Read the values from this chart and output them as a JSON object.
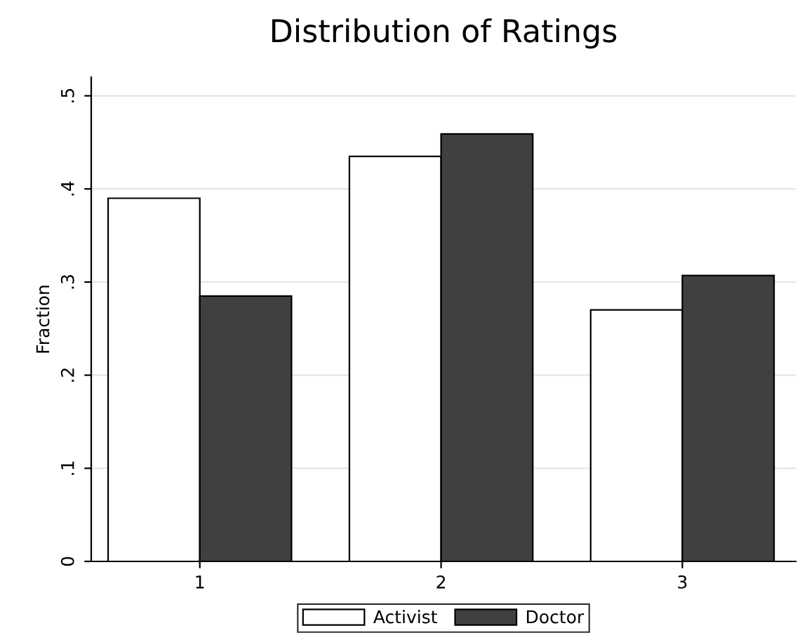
{
  "chart_data": {
    "type": "bar",
    "title": "Distribution of Ratings",
    "ylabel": "Fraction",
    "categories": [
      "1",
      "2",
      "3"
    ],
    "series": [
      {
        "name": "Activist",
        "color": "#ffffff",
        "values": [
          0.39,
          0.435,
          0.27
        ]
      },
      {
        "name": "Doctor",
        "color": "#404040",
        "values": [
          0.285,
          0.459,
          0.307
        ]
      }
    ],
    "ylim": [
      0,
      0.52
    ],
    "yticks": [
      {
        "value": 0,
        "label": "0"
      },
      {
        "value": 0.1,
        "label": ".1"
      },
      {
        "value": 0.2,
        "label": ".2"
      },
      {
        "value": 0.3,
        "label": ".3"
      },
      {
        "value": 0.4,
        "label": ".4"
      },
      {
        "value": 0.5,
        "label": ".5"
      }
    ],
    "grid": "y",
    "legend": "bottom"
  }
}
